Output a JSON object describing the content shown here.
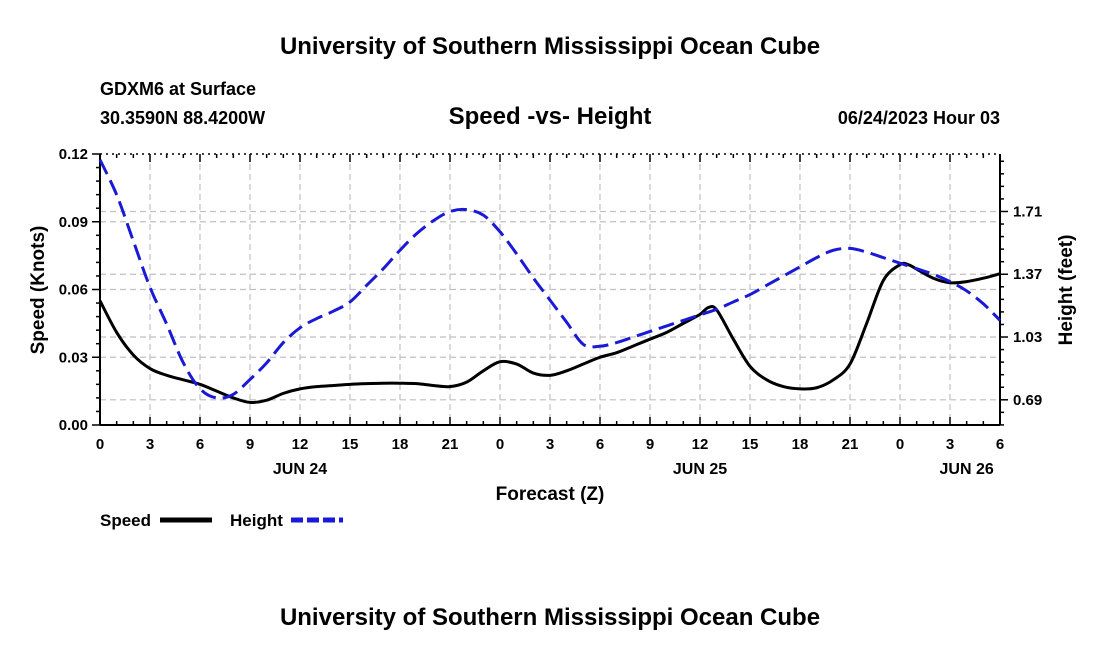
{
  "colors": {
    "speed": "#000000",
    "height": "#1a1ad6",
    "grid": "#c0c0c0"
  },
  "header": {
    "title": "University of Southern Mississippi Ocean Cube",
    "station": "GDXM6 at Surface",
    "coords": "30.3590N  88.4200W",
    "date": "06/24/2023 Hour 03"
  },
  "footer": {
    "title": "University of Southern Mississippi Ocean Cube"
  },
  "chart_data": {
    "type": "line",
    "title": "Speed -vs- Height",
    "xlabel": "Forecast (Z)",
    "ylabel": "Speed (Knots)",
    "y2label": "Height (feet)",
    "x_range": [
      0,
      54
    ],
    "x_units": "hours since 2023-06-24 00Z",
    "x_ticks": [
      {
        "x": 0,
        "label": "0"
      },
      {
        "x": 3,
        "label": "3"
      },
      {
        "x": 6,
        "label": "6"
      },
      {
        "x": 9,
        "label": "9"
      },
      {
        "x": 12,
        "label": "12"
      },
      {
        "x": 15,
        "label": "15"
      },
      {
        "x": 18,
        "label": "18"
      },
      {
        "x": 21,
        "label": "21"
      },
      {
        "x": 24,
        "label": "0"
      },
      {
        "x": 27,
        "label": "3"
      },
      {
        "x": 30,
        "label": "6"
      },
      {
        "x": 33,
        "label": "9"
      },
      {
        "x": 36,
        "label": "12"
      },
      {
        "x": 39,
        "label": "15"
      },
      {
        "x": 42,
        "label": "18"
      },
      {
        "x": 45,
        "label": "21"
      },
      {
        "x": 48,
        "label": "0"
      },
      {
        "x": 51,
        "label": "3"
      },
      {
        "x": 54,
        "label": "6"
      }
    ],
    "date_labels": [
      {
        "x": 12,
        "label": "JUN 24"
      },
      {
        "x": 36,
        "label": "JUN 25"
      },
      {
        "x": 52,
        "label": "JUN 26"
      }
    ],
    "y_left": {
      "range": [
        0,
        0.12
      ],
      "ticks": [
        0,
        0.03,
        0.06,
        0.09,
        0.12
      ],
      "labels": [
        "0.00",
        "0.03",
        "0.06",
        "0.09",
        "0.12"
      ]
    },
    "y_right": {
      "range": [
        0.5535,
        2.0213
      ],
      "ticks": [
        0.69,
        1.03,
        1.37,
        1.71
      ],
      "labels": [
        "0.69",
        "1.03",
        "1.37",
        "1.71"
      ]
    },
    "series": [
      {
        "name": "Speed",
        "axis": "left",
        "style": "solid",
        "color": "#000000",
        "x": [
          0,
          1,
          2,
          3,
          4,
          5,
          6,
          7,
          8,
          9,
          10,
          11,
          12,
          13,
          14,
          15,
          16,
          17,
          18,
          19,
          20,
          21,
          22,
          23,
          24,
          25,
          26,
          27,
          28,
          29,
          30,
          31,
          32,
          33,
          34,
          35,
          36,
          36.5,
          37,
          38,
          39,
          40,
          41,
          42,
          43,
          44,
          45,
          46,
          47,
          48,
          48.5,
          49,
          50,
          51,
          52,
          53,
          54
        ],
        "values": [
          0.055,
          0.041,
          0.031,
          0.025,
          0.022,
          0.02,
          0.018,
          0.015,
          0.012,
          0.01,
          0.011,
          0.014,
          0.016,
          0.017,
          0.0175,
          0.018,
          0.0183,
          0.0185,
          0.0185,
          0.0183,
          0.0175,
          0.017,
          0.019,
          0.024,
          0.028,
          0.027,
          0.023,
          0.022,
          0.024,
          0.027,
          0.03,
          0.032,
          0.035,
          0.038,
          0.041,
          0.045,
          0.049,
          0.052,
          0.051,
          0.038,
          0.026,
          0.02,
          0.017,
          0.016,
          0.0165,
          0.02,
          0.027,
          0.045,
          0.064,
          0.071,
          0.071,
          0.069,
          0.065,
          0.063,
          0.0635,
          0.065,
          0.067
        ]
      },
      {
        "name": "Height",
        "axis": "right",
        "style": "dashed",
        "color": "#1a1ad6",
        "x": [
          0,
          1,
          2,
          3,
          4,
          5,
          6,
          7,
          8,
          9,
          10,
          11,
          12,
          13,
          14,
          15,
          16,
          17,
          18,
          19,
          20,
          21,
          22,
          23,
          24,
          25,
          26,
          27,
          28,
          29,
          30,
          31,
          32,
          33,
          34,
          35,
          36,
          37,
          38,
          39,
          40,
          41,
          42,
          43,
          44,
          45,
          46,
          47,
          48,
          49,
          50,
          51,
          52,
          53,
          54
        ],
        "values": [
          1.99,
          1.8,
          1.55,
          1.3,
          1.1,
          0.89,
          0.75,
          0.7,
          0.72,
          0.8,
          0.89,
          1.0,
          1.08,
          1.13,
          1.17,
          1.22,
          1.31,
          1.4,
          1.5,
          1.59,
          1.66,
          1.71,
          1.72,
          1.69,
          1.6,
          1.48,
          1.35,
          1.23,
          1.11,
          0.99,
          0.98,
          1.0,
          1.03,
          1.06,
          1.09,
          1.12,
          1.15,
          1.18,
          1.22,
          1.26,
          1.31,
          1.36,
          1.41,
          1.46,
          1.5,
          1.51,
          1.49,
          1.46,
          1.43,
          1.4,
          1.37,
          1.33,
          1.28,
          1.21,
          1.12
        ]
      }
    ]
  },
  "legend": {
    "items": [
      {
        "label": "Speed"
      },
      {
        "label": "Height"
      }
    ]
  }
}
